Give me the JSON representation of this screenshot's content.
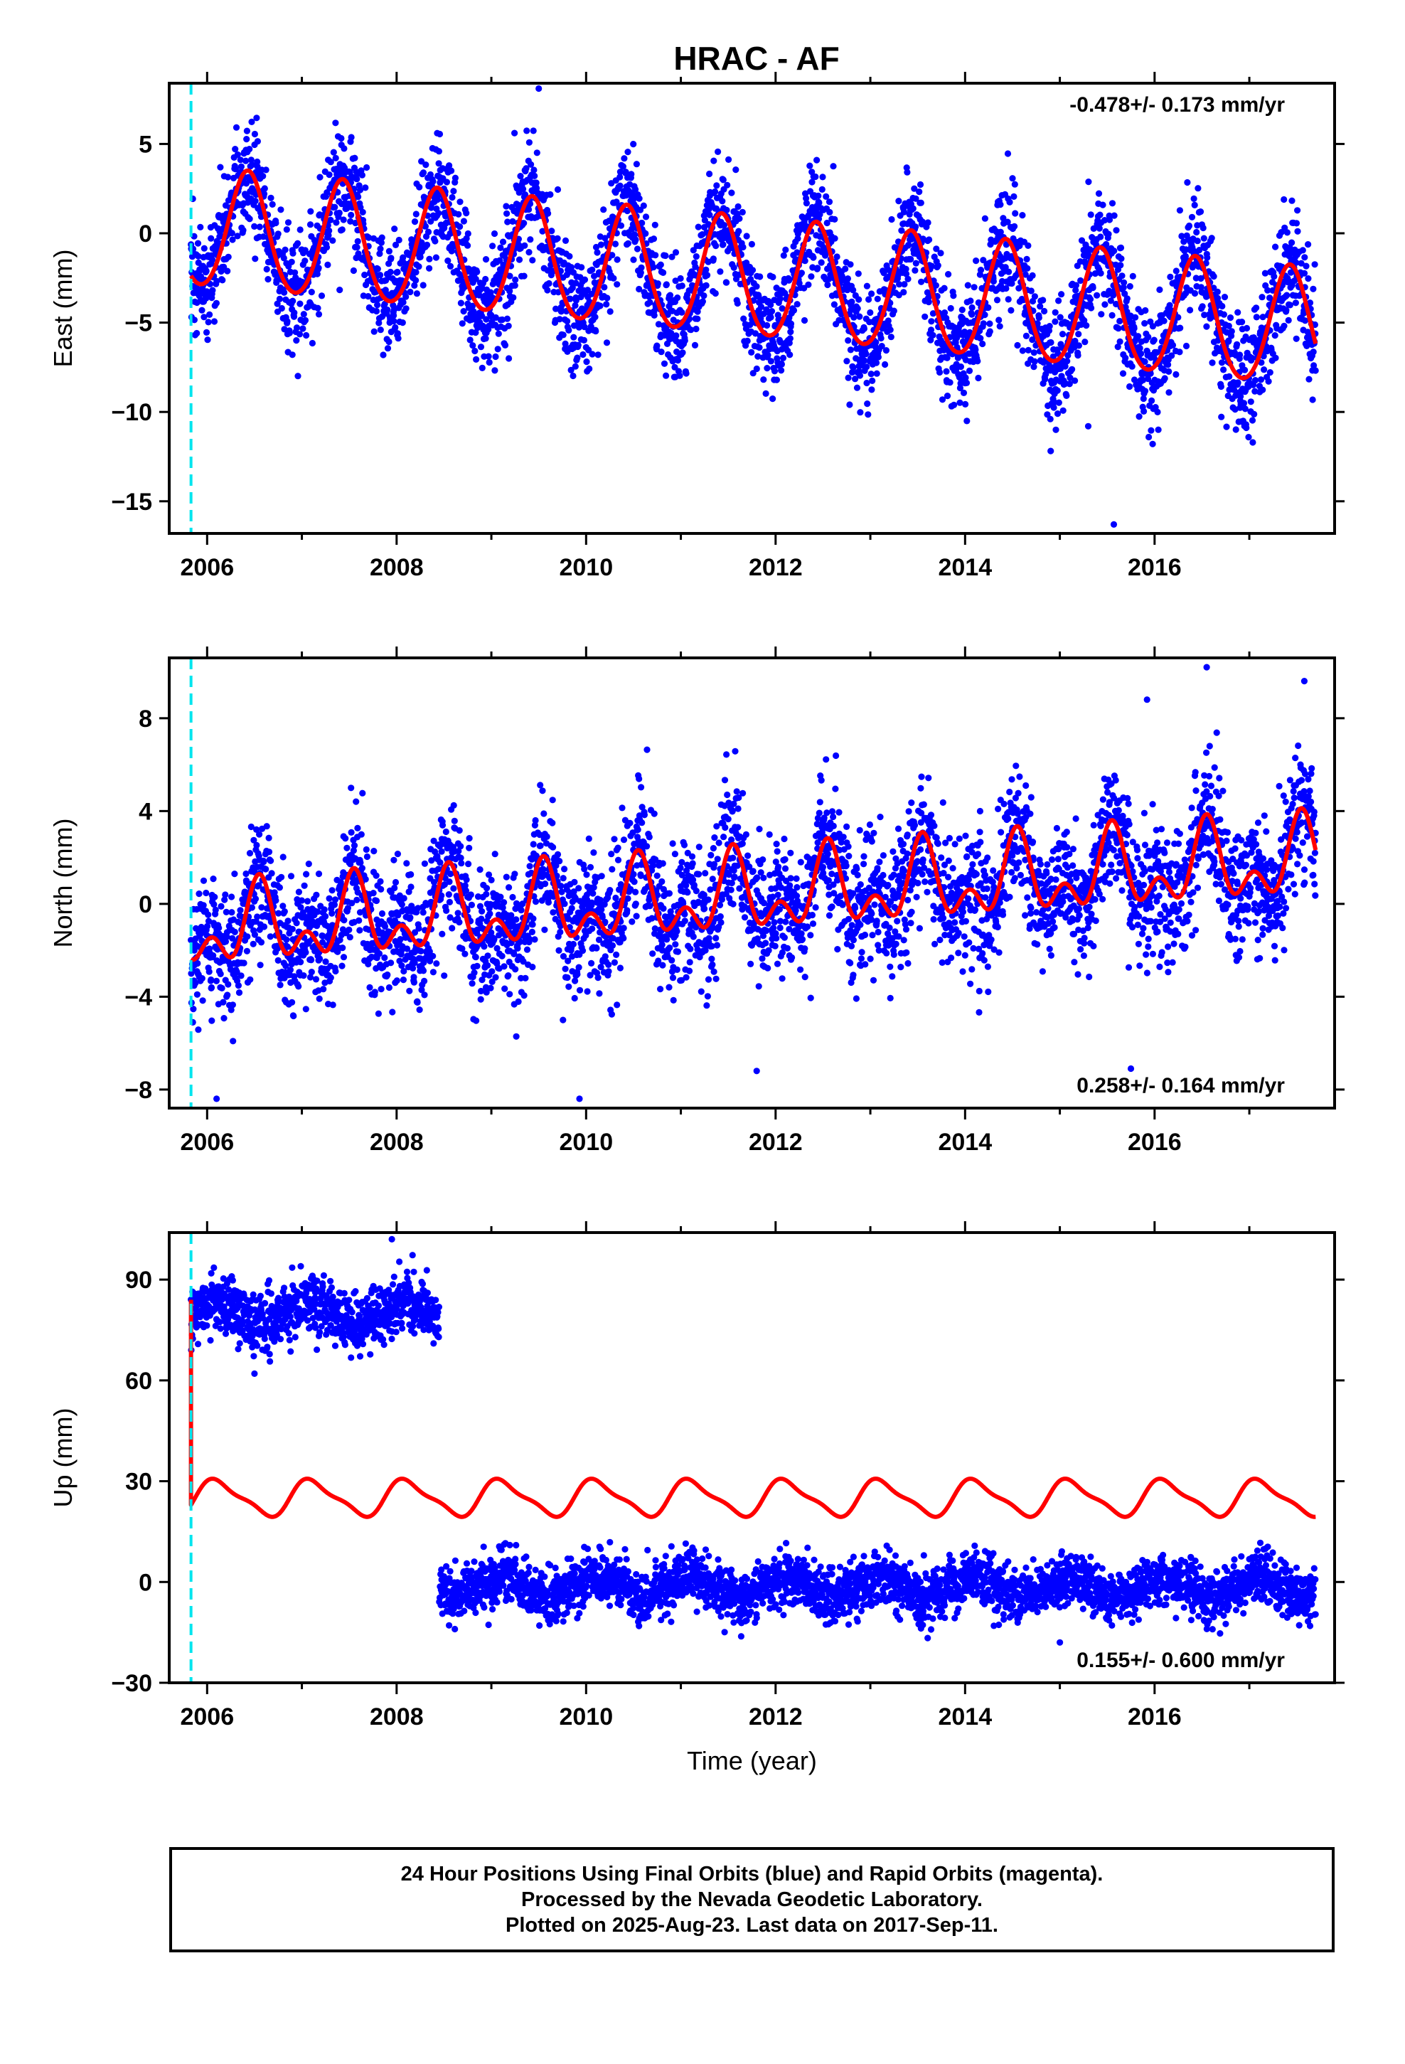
{
  "title": "HRAC - AF",
  "colors": {
    "final_orbits": "#0000ff",
    "model": "#ff0000",
    "reference_line": "#00e5ee"
  },
  "chart_data": [
    {
      "type": "scatter",
      "component": "east",
      "ylabel": "East (mm)",
      "xlabel": "",
      "rate_text": "-0.478+/- 0.173 mm/yr",
      "rate_position": "top-right",
      "xlim": [
        2005.6,
        2017.9
      ],
      "ylim": [
        -16.8,
        8.4
      ],
      "x_ticks": [
        2006,
        2008,
        2010,
        2012,
        2014,
        2016
      ],
      "y_ticks": [
        5,
        0,
        -5,
        -10,
        -15
      ],
      "y_tick_labels": [
        "5",
        "0",
        "−5",
        "−10",
        "−15"
      ],
      "reference_line_x": 2005.83,
      "data_range": [
        2005.83,
        2017.7
      ],
      "trend": {
        "value_at_start": 0.2,
        "rate": -0.478
      },
      "seasonal": {
        "annual_amp": 3.3,
        "annual_peak_year_fraction": 0.43,
        "semiannual_amp": 0.3
      },
      "scatter_sigma": 1.6,
      "outliers": [
        [
          2006.9,
          -6.8
        ],
        [
          2015.57,
          -16.3
        ],
        [
          2015.3,
          -10.8
        ],
        [
          2014.9,
          -10.4
        ],
        [
          2009.5,
          8.1
        ]
      ],
      "grid": false
    },
    {
      "type": "scatter",
      "component": "north",
      "ylabel": "North (mm)",
      "xlabel": "",
      "rate_text": "0.258+/- 0.164 mm/yr",
      "rate_position": "bottom-right",
      "xlim": [
        2005.6,
        2017.9
      ],
      "ylim": [
        -8.8,
        10.6
      ],
      "x_ticks": [
        2006,
        2008,
        2010,
        2012,
        2014,
        2016
      ],
      "y_ticks": [
        8,
        4,
        0,
        -4,
        -8
      ],
      "y_tick_labels": [
        "8",
        "4",
        "0",
        "−4",
        "−8"
      ],
      "reference_line_x": 2005.83,
      "data_range": [
        2005.83,
        2017.7
      ],
      "trend": {
        "value_at_start": -1.2,
        "rate": 0.258
      },
      "seasonal": {
        "annual_amp": 1.3,
        "annual_peak_year_fraction": 0.55,
        "semiannual_amp": 1.0
      },
      "scatter_sigma": 1.4,
      "outliers": [
        [
          2016.55,
          10.2
        ],
        [
          2017.58,
          9.6
        ],
        [
          2015.92,
          8.8
        ],
        [
          2006.1,
          -8.4
        ],
        [
          2009.93,
          -8.4
        ],
        [
          2011.8,
          -7.2
        ],
        [
          2015.75,
          -7.1
        ]
      ],
      "grid": false
    },
    {
      "type": "scatter",
      "component": "up",
      "ylabel": "Up (mm)",
      "xlabel": "Time (year)",
      "rate_text": "0.155+/- 0.600 mm/yr",
      "rate_position": "bottom-right",
      "xlim": [
        2005.6,
        2017.9
      ],
      "ylim": [
        -30,
        104
      ],
      "x_ticks": [
        2006,
        2008,
        2010,
        2012,
        2014,
        2016
      ],
      "y_ticks": [
        90,
        60,
        30,
        0,
        -30
      ],
      "y_tick_labels": [
        "90",
        "60",
        "30",
        "0",
        "−30"
      ],
      "reference_line_x": 2005.83,
      "data_range": [
        2005.83,
        2017.7
      ],
      "segments": [
        {
          "x_range": [
            2005.83,
            2008.45
          ],
          "mean": 80,
          "sigma": 4.5
        },
        {
          "x_range": [
            2008.45,
            2017.7
          ],
          "mean": -1.5,
          "sigma": 4.0
        }
      ],
      "model": {
        "base": 25,
        "annual_amp": 5.0,
        "annual_trough_year_fraction": 0.62,
        "semiannual_amp": 1.5,
        "offset_jump_at_start": 84
      },
      "outliers": [
        [
          2007.95,
          102
        ],
        [
          2006.5,
          62
        ],
        [
          2015.0,
          -18
        ]
      ],
      "grid": false
    }
  ],
  "caption": {
    "line1": "24 Hour Positions Using Final Orbits (blue) and Rapid Orbits (magenta).",
    "line2": "Processed by the Nevada Geodetic Laboratory.",
    "line3": "Plotted on 2025-Aug-23. Last data on 2017-Sep-11."
  }
}
